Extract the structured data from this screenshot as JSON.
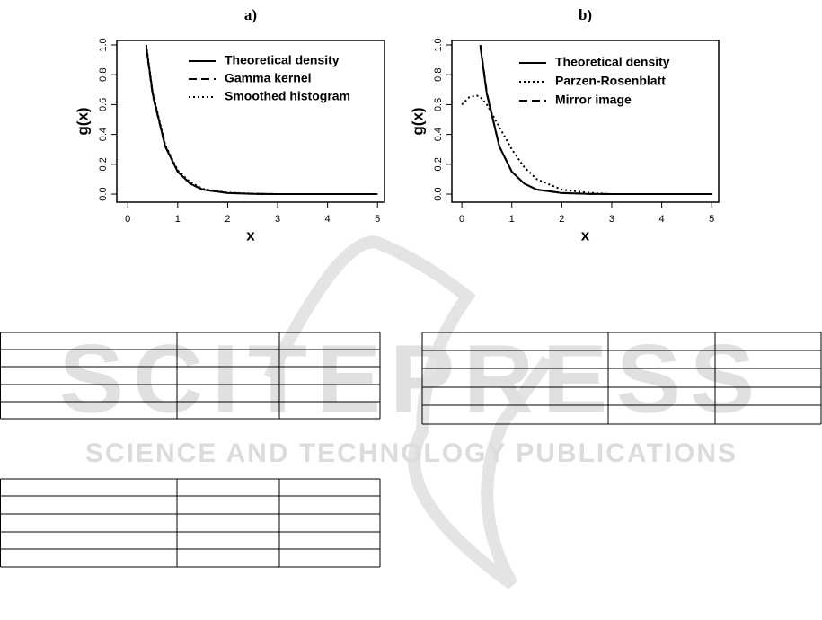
{
  "chart_data": [
    {
      "type": "line",
      "title": "a)",
      "x_label": "x",
      "y_label": "g(x)",
      "xlim": [
        -0.22,
        5.14
      ],
      "ylim": [
        -0.054,
        1.03
      ],
      "xticks": [
        0,
        1,
        2,
        3,
        4,
        5
      ],
      "yticks": [
        {
          "value": 0,
          "label": "0.0"
        },
        {
          "value": 0.2,
          "label": "0.2"
        },
        {
          "value": 0.4,
          "label": "0.4"
        },
        {
          "value": 0.6,
          "label": "0.6"
        },
        {
          "value": 0.8,
          "label": "0.8"
        },
        {
          "value": 1,
          "label": "1.0"
        }
      ],
      "legend": "top-right",
      "grid": false,
      "x": [
        0,
        0.15,
        0.3,
        0.37,
        0.5,
        0.75,
        1,
        1.25,
        1.5,
        2,
        2.5,
        3,
        4,
        5
      ],
      "series": [
        {
          "name": "Theoretical density",
          "color": "#000000",
          "line_style": "solid",
          "values": [
            null,
            null,
            null,
            0.99,
            0.67,
            0.32,
            0.15,
            0.07,
            0.03,
            0.007,
            0.002,
            0,
            0,
            0
          ]
        },
        {
          "name": "Gamma kernel",
          "color": "#000000",
          "line_style": "dashed",
          "values": [
            null,
            null,
            null,
            0.98,
            0.66,
            0.32,
            0.15,
            0.07,
            0.03,
            0.008,
            0.002,
            0,
            0,
            0
          ]
        },
        {
          "name": "Smoothed histogram",
          "color": "#000000",
          "line_style": "dotted",
          "values": [
            null,
            null,
            null,
            1.0,
            0.68,
            0.33,
            0.16,
            0.08,
            0.035,
            0.01,
            0.003,
            0,
            0,
            0
          ]
        }
      ]
    },
    {
      "type": "line",
      "title": "b)",
      "x_label": "x",
      "y_label": "g(x)",
      "xlim": [
        -0.2,
        5.14
      ],
      "ylim": [
        -0.054,
        1.03
      ],
      "xticks": [
        0,
        1,
        2,
        3,
        4,
        5
      ],
      "yticks": [
        {
          "value": 0,
          "label": "0.0"
        },
        {
          "value": 0.2,
          "label": "0.2"
        },
        {
          "value": 0.4,
          "label": "0.4"
        },
        {
          "value": 0.6,
          "label": "0.6"
        },
        {
          "value": 0.8,
          "label": "0.8"
        },
        {
          "value": 1,
          "label": "1.0"
        }
      ],
      "legend": "top-right",
      "grid": false,
      "x": [
        0,
        0.15,
        0.3,
        0.37,
        0.5,
        0.75,
        1,
        1.25,
        1.5,
        2,
        2.5,
        3,
        4,
        5
      ],
      "series": [
        {
          "name": "Theoretical density",
          "color": "#000000",
          "line_style": "solid",
          "values": [
            null,
            null,
            null,
            0.99,
            0.67,
            0.32,
            0.15,
            0.07,
            0.03,
            0.007,
            0.002,
            0,
            0,
            0
          ]
        },
        {
          "name": "Parzen-Rosenblatt",
          "color": "#000000",
          "line_style": "dotted",
          "values": [
            0.6,
            0.65,
            0.66,
            0.65,
            0.6,
            0.45,
            0.3,
            0.18,
            0.1,
            0.03,
            0.01,
            0,
            0,
            0
          ]
        },
        {
          "name": "Mirror image",
          "color": "#000000",
          "line_style": "dashed",
          "values": [
            null,
            null,
            null,
            1.0,
            0.68,
            0.32,
            0.15,
            0.07,
            0.03,
            0.008,
            0.002,
            0,
            0,
            0
          ]
        }
      ]
    }
  ],
  "watermark": {
    "title": "SCITEPRESS",
    "subtitle": "SCIENCE AND TECHNOLOGY PUBLICATIONS"
  }
}
